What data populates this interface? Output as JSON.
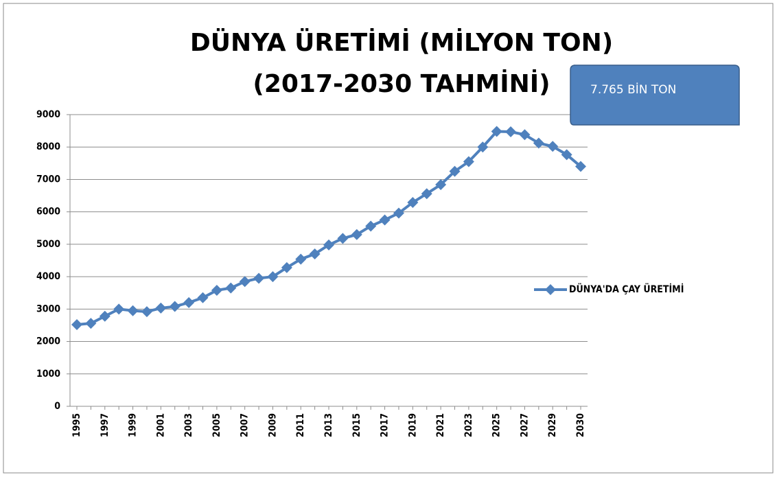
{
  "chart_data": {
    "type": "line",
    "title": "DÜNYA ÜRETİMİ (MİLYON TON)",
    "subtitle": "(2017-2030  TAHMİNİ)",
    "annotation": "7.765 BİN TON",
    "categories": [
      "1995",
      null,
      "1997",
      null,
      "1999",
      null,
      "2001",
      null,
      "2003",
      null,
      "2005",
      null,
      "2007",
      null,
      "2009",
      null,
      "2011",
      null,
      "2013",
      null,
      "2015",
      null,
      "2017",
      null,
      "2019",
      null,
      "2021",
      null,
      "2023",
      null,
      "2025",
      null,
      "2027",
      null,
      "2029",
      null,
      "2030"
    ],
    "series": [
      {
        "name": "DÜNYA'DA ÇAY ÜRETİMİ",
        "color": "#4f81bd",
        "values": [
          2520,
          2560,
          2780,
          3000,
          2950,
          2920,
          3030,
          3080,
          3200,
          3350,
          3580,
          3650,
          3850,
          3950,
          4000,
          4280,
          4540,
          4700,
          4980,
          5180,
          5300,
          5560,
          5750,
          5960,
          6290,
          6560,
          6840,
          7250,
          7550,
          8000,
          8480,
          8470,
          8380,
          8120,
          8020,
          7765,
          7400
        ]
      }
    ],
    "ylim": [
      0,
      9000
    ],
    "yticks": [
      0,
      1000,
      2000,
      3000,
      4000,
      5000,
      6000,
      7000,
      8000,
      9000
    ],
    "grid": true,
    "legend": "right"
  }
}
